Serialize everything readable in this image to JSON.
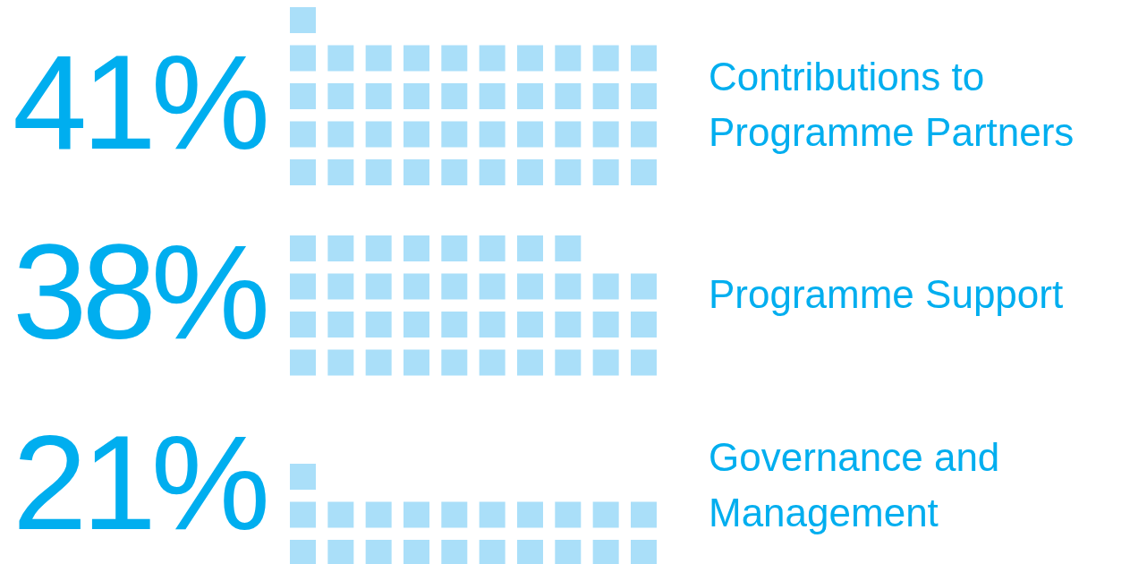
{
  "chart_data": {
    "type": "other",
    "categories": [
      "Contributions to Programme Partners",
      "Programme Support",
      "Governance and Management"
    ],
    "values": [
      41,
      38,
      21
    ],
    "value_labels": [
      "41%",
      "38%",
      "21%"
    ],
    "color": "#aadff9"
  }
}
